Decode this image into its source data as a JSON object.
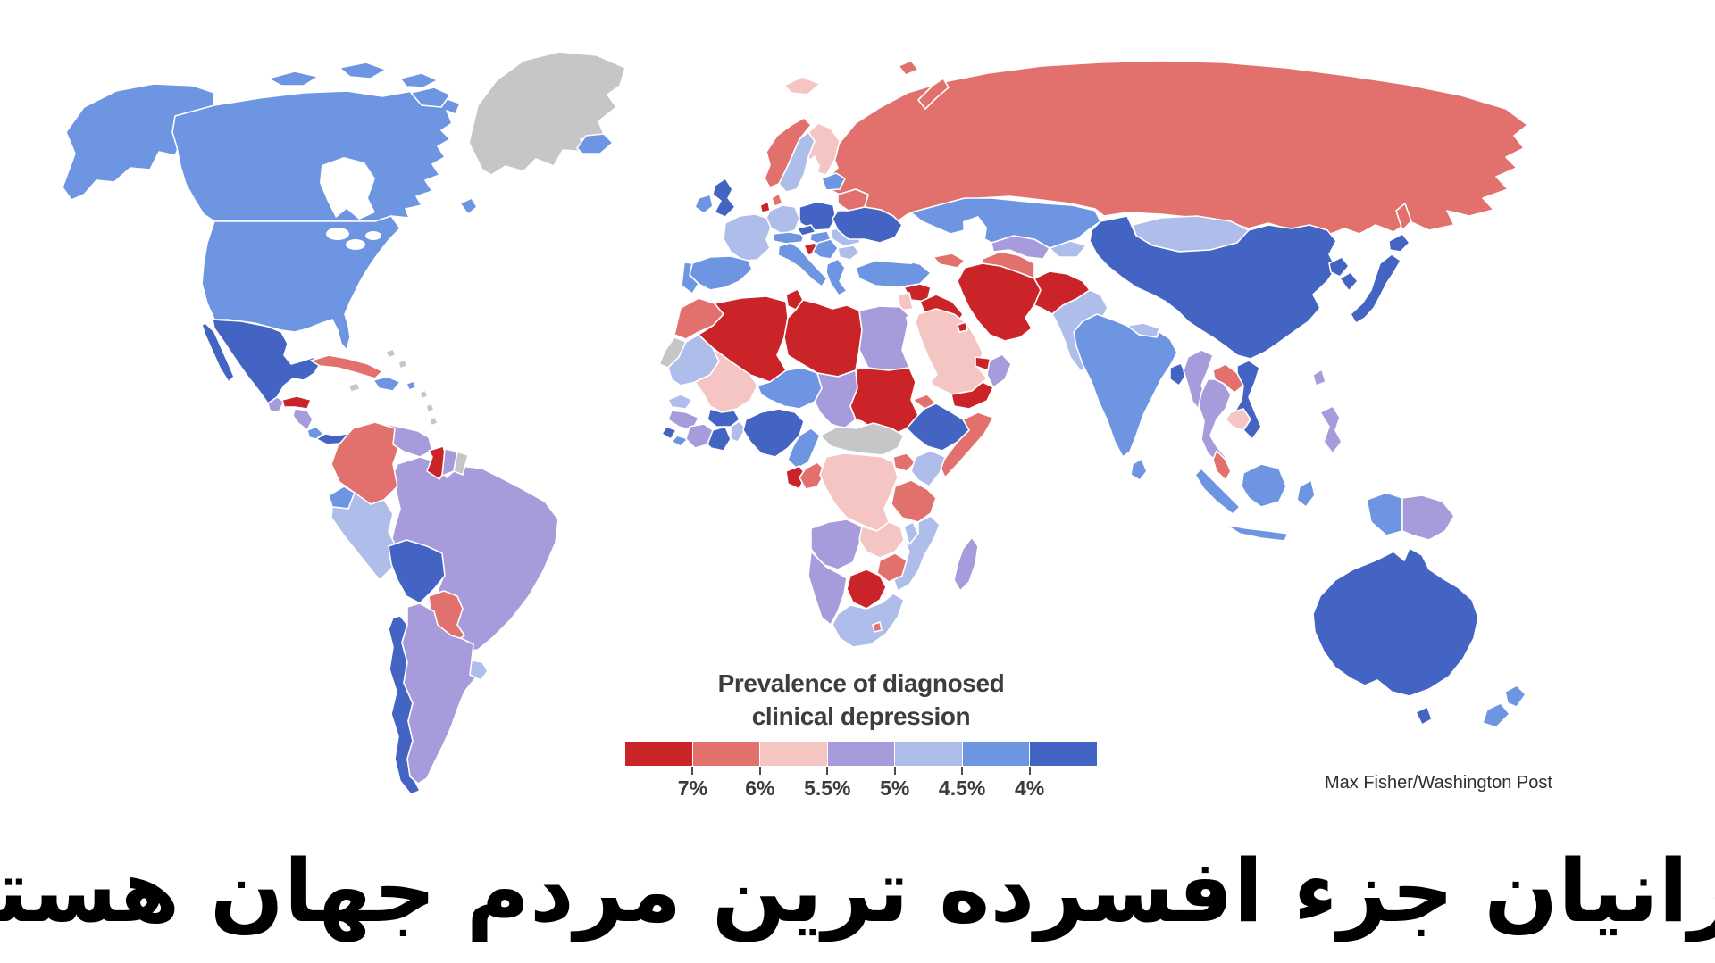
{
  "legend": {
    "title_line1": "Prevalence of diagnosed",
    "title_line2": "clinical depression",
    "bucket_order": [
      "7",
      "6",
      "5.5",
      "5",
      "4.5",
      "4",
      "3.5"
    ],
    "tick_labels": [
      "7%",
      "6%",
      "5.5%",
      "5%",
      "4.5%",
      "4%"
    ]
  },
  "attribution": "Max Fisher/Washington Post",
  "caption": "ایرانیان جزء افسرده ترین مردم جهان هستند",
  "map": {
    "sea_color": "#ffffff",
    "no_data_color": "#c6c6c8",
    "palette": {
      "7": "#cb2428",
      "6": "#e2716d",
      "5.5": "#f4c5c3",
      "5": "#a79bdb",
      "4.5": "#aebde9",
      "4": "#6e95e2",
      "3.5": "#4464c4",
      "nd": "#c6c6c8"
    },
    "regions": [
      {
        "id": "russia",
        "level": "6"
      },
      {
        "id": "svalbard",
        "level": "5.5"
      },
      {
        "id": "novaya-zemlya",
        "level": "6"
      },
      {
        "id": "franzjosef",
        "level": "6"
      },
      {
        "id": "sakhalin",
        "level": "6"
      },
      {
        "id": "greenland",
        "level": "nd"
      },
      {
        "id": "iceland",
        "level": "4"
      },
      {
        "id": "alaska",
        "level": "4"
      },
      {
        "id": "canada",
        "level": "4"
      },
      {
        "id": "arctic1",
        "level": "4"
      },
      {
        "id": "arctic2",
        "level": "4"
      },
      {
        "id": "arctic3",
        "level": "4"
      },
      {
        "id": "baffin",
        "level": "4"
      },
      {
        "id": "newfoundland",
        "level": "4"
      },
      {
        "id": "usa",
        "level": "4"
      },
      {
        "id": "baja",
        "level": "3.5"
      },
      {
        "id": "mexico",
        "level": "3.5"
      },
      {
        "id": "cuba",
        "level": "6"
      },
      {
        "id": "hispaniola",
        "level": "4"
      },
      {
        "id": "jamaica",
        "level": "nd"
      },
      {
        "id": "bahamas1",
        "level": "nd"
      },
      {
        "id": "bahamas2",
        "level": "nd"
      },
      {
        "id": "puertorico",
        "level": "4"
      },
      {
        "id": "antilles1",
        "level": "nd"
      },
      {
        "id": "antilles2",
        "level": "nd"
      },
      {
        "id": "antilles3",
        "level": "nd"
      },
      {
        "id": "guatemala",
        "level": "5"
      },
      {
        "id": "honduras",
        "level": "7"
      },
      {
        "id": "nicaragua",
        "level": "5"
      },
      {
        "id": "costarica",
        "level": "4"
      },
      {
        "id": "panama",
        "level": "3.5"
      },
      {
        "id": "brazil",
        "level": "5"
      },
      {
        "id": "colombia",
        "level": "6"
      },
      {
        "id": "venezuela",
        "level": "5"
      },
      {
        "id": "guyana",
        "level": "7"
      },
      {
        "id": "suriname",
        "level": "5"
      },
      {
        "id": "frguiana",
        "level": "nd"
      },
      {
        "id": "ecuador",
        "level": "4"
      },
      {
        "id": "peru",
        "level": "4.5"
      },
      {
        "id": "bolivia",
        "level": "3.5"
      },
      {
        "id": "paraguay",
        "level": "6"
      },
      {
        "id": "chile",
        "level": "3.5"
      },
      {
        "id": "argentina",
        "level": "5"
      },
      {
        "id": "uruguay",
        "level": "4.5"
      },
      {
        "id": "uk",
        "level": "3.5"
      },
      {
        "id": "ireland",
        "level": "4"
      },
      {
        "id": "norway",
        "level": "6"
      },
      {
        "id": "sweden",
        "level": "4.5"
      },
      {
        "id": "finland",
        "level": "5.5"
      },
      {
        "id": "baltics",
        "level": "4"
      },
      {
        "id": "denmark",
        "level": "6"
      },
      {
        "id": "netherlands",
        "level": "7"
      },
      {
        "id": "germany",
        "level": "4.5"
      },
      {
        "id": "poland",
        "level": "3.5"
      },
      {
        "id": "france",
        "level": "4.5"
      },
      {
        "id": "spain",
        "level": "4"
      },
      {
        "id": "portugal",
        "level": "4"
      },
      {
        "id": "alpine",
        "level": "4"
      },
      {
        "id": "czech",
        "level": "3.5"
      },
      {
        "id": "hungary",
        "level": "4"
      },
      {
        "id": "italy",
        "level": "4"
      },
      {
        "id": "croatia",
        "level": "7"
      },
      {
        "id": "serbia",
        "level": "4"
      },
      {
        "id": "greece",
        "level": "4"
      },
      {
        "id": "romania",
        "level": "4.5"
      },
      {
        "id": "bulgaria",
        "level": "4.5"
      },
      {
        "id": "belarus",
        "level": "6"
      },
      {
        "id": "ukraine",
        "level": "3.5"
      },
      {
        "id": "caucasus",
        "level": "6"
      },
      {
        "id": "turkey",
        "level": "4"
      },
      {
        "id": "syria",
        "level": "7"
      },
      {
        "id": "iraq",
        "level": "7"
      },
      {
        "id": "jordan",
        "level": "5.5"
      },
      {
        "id": "saudi",
        "level": "5.5"
      },
      {
        "id": "kuwait",
        "level": "7"
      },
      {
        "id": "uae",
        "level": "7"
      },
      {
        "id": "oman",
        "level": "5"
      },
      {
        "id": "yemen",
        "level": "7"
      },
      {
        "id": "iran",
        "level": "7"
      },
      {
        "id": "afghanistan",
        "level": "7"
      },
      {
        "id": "pakistan",
        "level": "4.5"
      },
      {
        "id": "turkmenistan",
        "level": "6"
      },
      {
        "id": "uzbekistan",
        "level": "5"
      },
      {
        "id": "tajikkyrgyz",
        "level": "4.5"
      },
      {
        "id": "kazakhstan",
        "level": "4"
      },
      {
        "id": "mongolia",
        "level": "4.5"
      },
      {
        "id": "china",
        "level": "3.5"
      },
      {
        "id": "nkorea",
        "level": "3.5"
      },
      {
        "id": "skorea",
        "level": "3.5"
      },
      {
        "id": "japan",
        "level": "3.5"
      },
      {
        "id": "hokkaido",
        "level": "3.5"
      },
      {
        "id": "india",
        "level": "4"
      },
      {
        "id": "nepal",
        "level": "4.5"
      },
      {
        "id": "bangladesh",
        "level": "3.5"
      },
      {
        "id": "srilanka",
        "level": "4"
      },
      {
        "id": "myanmar",
        "level": "5"
      },
      {
        "id": "laos",
        "level": "6"
      },
      {
        "id": "thailand",
        "level": "5"
      },
      {
        "id": "vietnam",
        "level": "3.5"
      },
      {
        "id": "cambodia",
        "level": "5.5"
      },
      {
        "id": "malaysia",
        "level": "6"
      },
      {
        "id": "sumatra",
        "level": "4"
      },
      {
        "id": "java",
        "level": "4"
      },
      {
        "id": "borneo",
        "level": "4"
      },
      {
        "id": "sulawesi",
        "level": "4"
      },
      {
        "id": "wpapua",
        "level": "4"
      },
      {
        "id": "png",
        "level": "5"
      },
      {
        "id": "philippines",
        "level": "5"
      },
      {
        "id": "taiwan",
        "level": "5"
      },
      {
        "id": "australia",
        "level": "3.5"
      },
      {
        "id": "tasmania",
        "level": "3.5"
      },
      {
        "id": "nz-north",
        "level": "4"
      },
      {
        "id": "nz-south",
        "level": "4"
      },
      {
        "id": "morocco",
        "level": "6"
      },
      {
        "id": "wsahara",
        "level": "nd"
      },
      {
        "id": "algeria",
        "level": "7"
      },
      {
        "id": "tunisia",
        "level": "7"
      },
      {
        "id": "libya",
        "level": "7"
      },
      {
        "id": "egypt",
        "level": "5"
      },
      {
        "id": "mauritania",
        "level": "4.5"
      },
      {
        "id": "mali",
        "level": "5.5"
      },
      {
        "id": "niger",
        "level": "4"
      },
      {
        "id": "chad",
        "level": "5"
      },
      {
        "id": "sudan",
        "level": "7"
      },
      {
        "id": "eritrea",
        "level": "6"
      },
      {
        "id": "ethiopia",
        "level": "3.5"
      },
      {
        "id": "somalia",
        "level": "6"
      },
      {
        "id": "senegal",
        "level": "4.5"
      },
      {
        "id": "guinea",
        "level": "5"
      },
      {
        "id": "sierraleone",
        "level": "3.5"
      },
      {
        "id": "liberia",
        "level": "4"
      },
      {
        "id": "ivorycoast",
        "level": "5"
      },
      {
        "id": "burkina",
        "level": "3.5"
      },
      {
        "id": "benintogo",
        "level": "4.5"
      },
      {
        "id": "ghana",
        "level": "3.5"
      },
      {
        "id": "nigeria",
        "level": "3.5"
      },
      {
        "id": "cameroon",
        "level": "4"
      },
      {
        "id": "carssudan",
        "level": "nd"
      },
      {
        "id": "gabon",
        "level": "7"
      },
      {
        "id": "congo",
        "level": "6"
      },
      {
        "id": "drc",
        "level": "5.5"
      },
      {
        "id": "uganda",
        "level": "6"
      },
      {
        "id": "kenya",
        "level": "4.5"
      },
      {
        "id": "tanzania",
        "level": "6"
      },
      {
        "id": "angola",
        "level": "5"
      },
      {
        "id": "zambia",
        "level": "5.5"
      },
      {
        "id": "malawi",
        "level": "4.5"
      },
      {
        "id": "mozambique",
        "level": "4.5"
      },
      {
        "id": "zimbabwe",
        "level": "6"
      },
      {
        "id": "botswana",
        "level": "7"
      },
      {
        "id": "namibia",
        "level": "5"
      },
      {
        "id": "southafrica",
        "level": "4.5"
      },
      {
        "id": "lesotho",
        "level": "6"
      },
      {
        "id": "madagascar",
        "level": "5"
      }
    ]
  },
  "chart_data": {
    "type": "heatmap",
    "title": "Prevalence of diagnosed clinical depression",
    "legend_ticks": [
      "7%",
      "6%",
      "5.5%",
      "5%",
      "4.5%",
      "4%"
    ],
    "scale": [
      {
        "bucket": ">=7%",
        "color": "#cb2428"
      },
      {
        "bucket": "6-7%",
        "color": "#e2716d"
      },
      {
        "bucket": "5.5-6%",
        "color": "#f4c5c3"
      },
      {
        "bucket": "5-5.5%",
        "color": "#a79bdb"
      },
      {
        "bucket": "4.5-5%",
        "color": "#aebde9"
      },
      {
        "bucket": "4-4.5%",
        "color": "#6e95e2"
      },
      {
        "bucket": "<4%",
        "color": "#4464c4"
      },
      {
        "bucket": "no data",
        "color": "#c6c6c8"
      }
    ],
    "legend_position": "bottom-center",
    "note": "per-country buckets are listed in map.regions"
  }
}
